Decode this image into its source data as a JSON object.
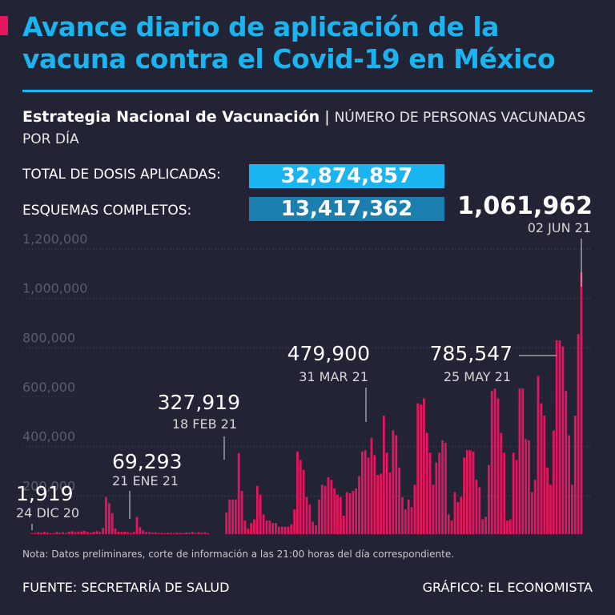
{
  "title": "Avance diario de aplicación de la vacuna contra el Covid-19 en México",
  "subtitle": {
    "strong": "Estrategia Nacional de Vacunación",
    "separator": "|",
    "light": "NÚMERO DE PERSONAS VACUNADAS POR DÍA"
  },
  "stats": {
    "total_label": "TOTAL DE DOSIS APLICADAS:",
    "total_value": "32,874,857",
    "complete_label": "ESQUEMAS COMPLETOS:",
    "complete_value": "13,417,362"
  },
  "annotations": [
    {
      "value": "1,919",
      "date": "24 DIC 20"
    },
    {
      "value": "69,293",
      "date": "21 ENE 21"
    },
    {
      "value": "327,919",
      "date": "18 FEB 21"
    },
    {
      "value": "479,900",
      "date": "31 MAR 21"
    },
    {
      "value": "785,547",
      "date": "25 MAY 21"
    },
    {
      "value": "1,061,962",
      "date": "02 JUN 21"
    }
  ],
  "footnote": "Nota: Datos preliminares, corte de información a las 21:00 horas del día correspondiente.",
  "source": "FUENTE: SECRETARÍA DE SALUD",
  "credit": "GRÁFICO: EL ECONOMISTA",
  "colors": {
    "background": "#222335",
    "title": "#1ab4f0",
    "bar": "#e6155f",
    "total_box": "#1ab4f0",
    "complete_box": "#1a7fae",
    "grid": "#4a4c60"
  },
  "chart_data": {
    "type": "bar",
    "ylim": [
      0,
      1200000
    ],
    "yticks": [
      "1,200,000",
      "1,000,000",
      "800,000",
      "600,000",
      "400,000",
      "200,000"
    ],
    "ytick_values": [
      1200000,
      1000000,
      800000,
      600000,
      400000,
      200000
    ],
    "x_start": "24 DIC 20",
    "x_end": "02 JUN 21",
    "values": [
      1919,
      5000,
      8000,
      6000,
      9000,
      7000,
      3000,
      4000,
      9000,
      6000,
      8000,
      5000,
      10000,
      12000,
      8000,
      9000,
      11000,
      13000,
      9000,
      6000,
      9000,
      12000,
      8000,
      25000,
      150000,
      125000,
      85000,
      22000,
      10000,
      9000,
      10000,
      8000,
      5000,
      9000,
      69293,
      28000,
      15000,
      9000,
      8000,
      6000,
      7000,
      5000,
      5000,
      4000,
      6000,
      5000,
      4000,
      6000,
      5000,
      4000,
      7000,
      6000,
      9000,
      5000,
      8000,
      6000,
      7000,
      3000,
      0,
      0,
      0,
      0,
      0,
      87000,
      140000,
      140000,
      140000,
      327919,
      175000,
      55000,
      22000,
      45000,
      60000,
      195000,
      160000,
      80000,
      55000,
      55000,
      45000,
      45000,
      30000,
      30000,
      30000,
      30000,
      40000,
      100000,
      335000,
      300000,
      260000,
      150000,
      120000,
      50000,
      35000,
      140000,
      200000,
      195000,
      230000,
      220000,
      185000,
      160000,
      150000,
      75000,
      170000,
      165000,
      175000,
      185000,
      235000,
      335000,
      340000,
      310000,
      390000,
      320000,
      240000,
      245000,
      479900,
      330000,
      250000,
      420000,
      400000,
      270000,
      150000,
      100000,
      140000,
      110000,
      200000,
      530000,
      525000,
      550000,
      410000,
      330000,
      200000,
      290000,
      330000,
      380000,
      370000,
      80000,
      55000,
      170000,
      130000,
      150000,
      310000,
      340000,
      340000,
      335000,
      220000,
      190000,
      60000,
      70000,
      280000,
      580000,
      590000,
      550000,
      410000,
      330000,
      55000,
      60000,
      330000,
      300000,
      590000,
      590000,
      385000,
      380000,
      170000,
      220000,
      640000,
      530000,
      480000,
      270000,
      200000,
      420000,
      785547,
      785000,
      760000,
      580000,
      400000,
      200000,
      480000,
      810000,
      1061962
    ]
  }
}
